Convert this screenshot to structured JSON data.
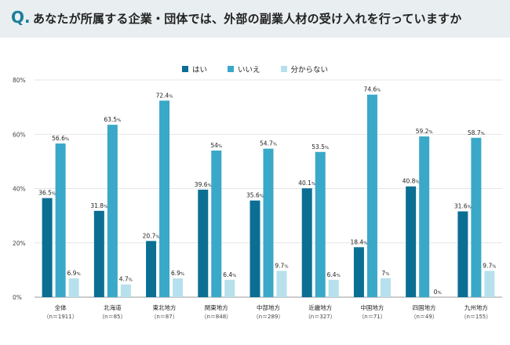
{
  "header": {
    "q_mark": "Q.",
    "title": "あなたが所属する企業・団体では、外部の副業人材の受け入れを行っていますか"
  },
  "legend": [
    {
      "label": "はい",
      "color": "#0b6f93"
    },
    {
      "label": "いいえ",
      "color": "#3aa8c8"
    },
    {
      "label": "分からない",
      "color": "#b6e0ec"
    }
  ],
  "chart_data": {
    "type": "bar",
    "title": "あなたが所属する企業・団体では、外部の副業人材の受け入れを行っていますか",
    "categories": [
      "全体",
      "北海道",
      "東北地方",
      "関東地方",
      "中部地方",
      "近畿地方",
      "中国地方",
      "四国地方",
      "九州地方"
    ],
    "category_sublabels": [
      "（n＝1911）",
      "（n＝85）",
      "（n＝87）",
      "（n＝848）",
      "（n＝289）",
      "（n＝327）",
      "（n＝71）",
      "（n＝49）",
      "（n＝155）"
    ],
    "series": [
      {
        "name": "はい",
        "color": "#0b6f93",
        "values": [
          36.5,
          31.8,
          20.7,
          39.6,
          35.6,
          40.1,
          18.4,
          40.8,
          31.6
        ],
        "labels": [
          "36.5",
          "31.8",
          "20.7",
          "39.6",
          "35.6",
          "40.1",
          "18.4",
          "40.8",
          "31.6"
        ]
      },
      {
        "name": "いいえ",
        "color": "#3aa8c8",
        "values": [
          56.6,
          63.5,
          72.4,
          54,
          54.7,
          53.5,
          74.6,
          59.2,
          58.7
        ],
        "labels": [
          "56.6",
          "63.5",
          "72.4",
          "54",
          "54.7",
          "53.5",
          "74.6",
          "59.2",
          "58.7"
        ]
      },
      {
        "name": "分からない",
        "color": "#b6e0ec",
        "values": [
          6.9,
          4.7,
          6.9,
          6.4,
          9.7,
          6.4,
          7,
          0,
          9.7
        ],
        "labels": [
          "6.9",
          "4.7",
          "6.9",
          "6.4",
          "9.7",
          "6.4",
          "7",
          "0",
          "9.7"
        ]
      }
    ],
    "value_suffix": "%",
    "ylim": [
      0,
      80
    ],
    "yticks": [
      0,
      20,
      40,
      60,
      80
    ],
    "ytick_labels": [
      "0%",
      "20%",
      "40%",
      "60%",
      "80%"
    ],
    "grid": true,
    "legend_position": "top-center"
  }
}
